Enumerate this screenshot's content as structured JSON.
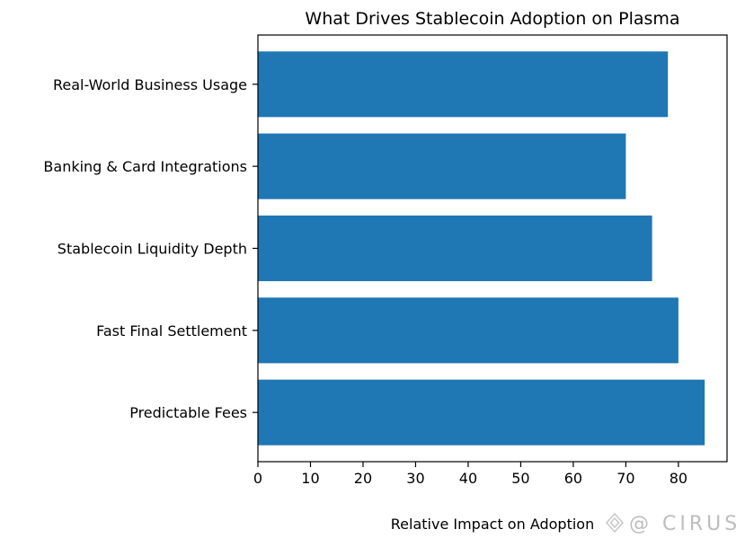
{
  "chart_data": {
    "type": "bar",
    "orientation": "horizontal",
    "title": "What Drives Stablecoin Adoption on Plasma",
    "xlabel": "Relative Impact on Adoption",
    "ylabel": "",
    "categories": [
      "Predictable Fees",
      "Fast Final Settlement",
      "Stablecoin Liquidity Depth",
      "Banking & Card Integrations",
      "Real-World Business Usage"
    ],
    "values": [
      85,
      80,
      75,
      70,
      78
    ],
    "xlim": [
      0,
      89.25
    ],
    "xticks": [
      0,
      10,
      20,
      30,
      40,
      50,
      60,
      70,
      80
    ],
    "grid": false,
    "bar_color": "#1f77b4"
  },
  "watermark": {
    "text": "@ CIRUS"
  }
}
